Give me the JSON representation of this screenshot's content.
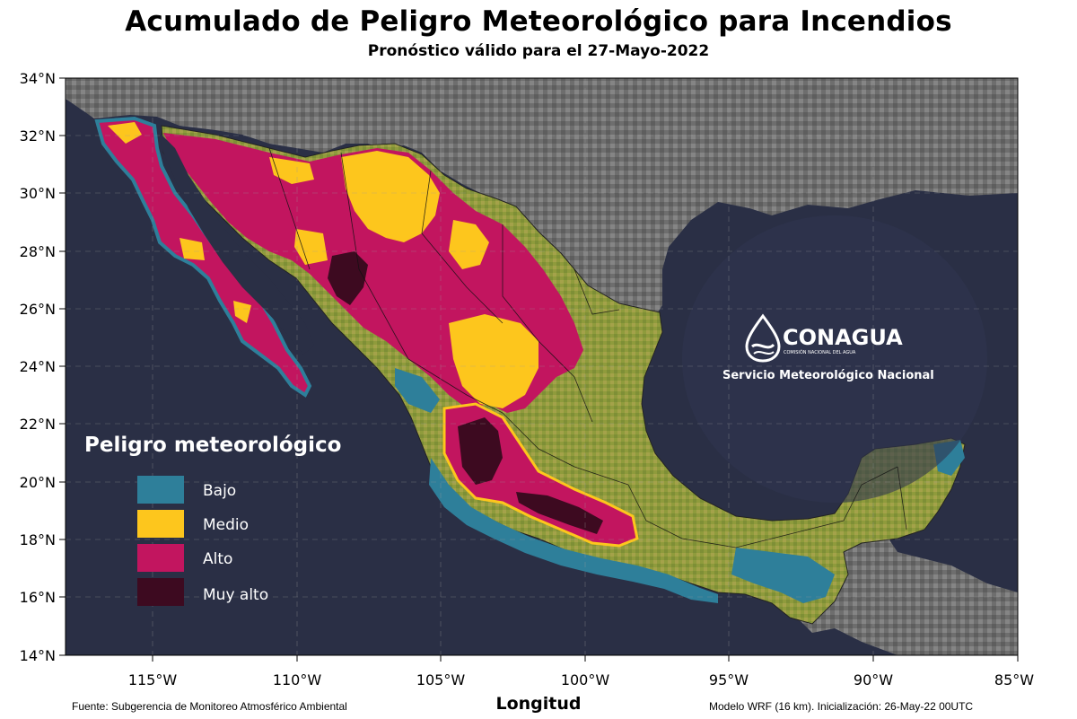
{
  "title": "Acumulado de Peligro Meteorológico para Incendios",
  "subtitle": "Pronóstico válido para el 27-Mayo-2022",
  "axes": {
    "lat_ticks": [
      "34°N",
      "32°N",
      "30°N",
      "28°N",
      "26°N",
      "24°N",
      "22°N",
      "20°N",
      "18°N",
      "16°N",
      "14°N"
    ],
    "lon_ticks": [
      "115°W",
      "110°W",
      "105°W",
      "100°W",
      "95°W",
      "90°W",
      "85°W"
    ],
    "xlabel": "Longitud"
  },
  "legend": {
    "title": "Peligro meteorológico",
    "items": [
      {
        "label": "Bajo",
        "color": "#2e7f9a"
      },
      {
        "label": "Medio",
        "color": "#fdc61d"
      },
      {
        "label": "Alto",
        "color": "#c2155f"
      },
      {
        "label": "Muy alto",
        "color": "#3d0a20"
      }
    ]
  },
  "brand": {
    "name": "CONAGUA",
    "tagline": "COMISIÓN NACIONAL DEL AGUA",
    "service": "Servicio Meteorológico Nacional"
  },
  "footer": {
    "source": "Fuente: Subgerencia de Monitoreo Atmosférico Ambiental",
    "model": "Modelo WRF (16 km). Inicialización: 26-May-22  00UTC"
  },
  "colors": {
    "ocean": "#2a2f45",
    "land_us": "#7c7c7c",
    "land_mx": "#8c9a3a",
    "bajo": "#2e7f9a",
    "medio": "#fdc61d",
    "alto": "#c2155f",
    "muy_alto": "#3d0a20"
  }
}
